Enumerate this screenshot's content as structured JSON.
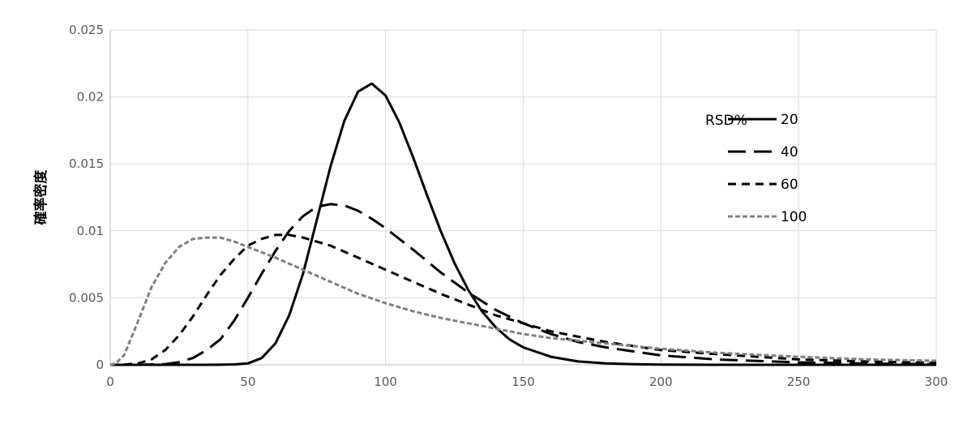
{
  "chart_data": {
    "type": "line",
    "title": "",
    "xlabel": "",
    "ylabel": "確率密度",
    "xlim": [
      0,
      300
    ],
    "ylim": [
      0,
      0.025
    ],
    "x_ticks": [
      "0",
      "50",
      "100",
      "150",
      "200",
      "250",
      "300"
    ],
    "y_ticks": [
      "0",
      "0.005",
      "0.01",
      "0.015",
      "0.02",
      "0.025"
    ],
    "grid": true,
    "legend": {
      "title": "RSD%",
      "position": "top-right"
    },
    "series": [
      {
        "name": "20",
        "color": "#000000",
        "dash": "solid",
        "x": [
          0,
          30,
          40,
          45,
          50,
          55,
          60,
          65,
          70,
          75,
          80,
          85,
          90,
          95,
          100,
          105,
          110,
          115,
          120,
          125,
          130,
          135,
          140,
          145,
          150,
          160,
          170,
          180,
          190,
          200,
          220,
          250,
          300
        ],
        "y": [
          0,
          0,
          5e-06,
          3e-05,
          0.0001,
          0.0005,
          0.0016,
          0.0037,
          0.0068,
          0.0108,
          0.0148,
          0.0182,
          0.0204,
          0.021,
          0.0201,
          0.0181,
          0.0155,
          0.0127,
          0.01,
          0.0076,
          0.0056,
          0.004,
          0.0028,
          0.0019,
          0.0013,
          0.0006,
          0.00025,
          0.0001,
          4e-05,
          2e-05,
          3e-06,
          0,
          0
        ]
      },
      {
        "name": "40",
        "color": "#000000",
        "dash": "long-dash",
        "x": [
          0,
          10,
          20,
          25,
          30,
          35,
          40,
          45,
          50,
          55,
          60,
          65,
          70,
          75,
          80,
          85,
          90,
          95,
          100,
          110,
          120,
          130,
          140,
          150,
          160,
          170,
          180,
          190,
          200,
          220,
          250,
          275,
          300
        ],
        "y": [
          0,
          0,
          5e-05,
          0.0002,
          0.0005,
          0.0011,
          0.0019,
          0.0033,
          0.005,
          0.0068,
          0.0085,
          0.01,
          0.0111,
          0.0118,
          0.012,
          0.0119,
          0.0115,
          0.0109,
          0.0102,
          0.0086,
          0.0069,
          0.0054,
          0.0041,
          0.0031,
          0.0023,
          0.0017,
          0.0013,
          0.001,
          0.0007,
          0.0004,
          0.00018,
          9e-05,
          5e-05
        ]
      },
      {
        "name": "60",
        "color": "#000000",
        "dash": "short-dash",
        "x": [
          0,
          5,
          10,
          15,
          20,
          25,
          30,
          35,
          40,
          45,
          50,
          55,
          60,
          65,
          70,
          80,
          90,
          100,
          110,
          120,
          130,
          140,
          150,
          160,
          170,
          180,
          200,
          220,
          250,
          275,
          300
        ],
        "y": [
          0,
          1e-05,
          0.0001,
          0.0004,
          0.0011,
          0.0022,
          0.0036,
          0.0052,
          0.0067,
          0.0079,
          0.0089,
          0.0094,
          0.0097,
          0.0097,
          0.0095,
          0.0089,
          0.008,
          0.0071,
          0.0062,
          0.0053,
          0.0045,
          0.0037,
          0.0031,
          0.0025,
          0.0021,
          0.0017,
          0.0011,
          0.0008,
          0.0004,
          0.00025,
          0.00015
        ]
      },
      {
        "name": "100",
        "color": "#808080",
        "dash": "dot",
        "x": [
          0,
          2,
          5,
          10,
          15,
          20,
          25,
          30,
          35,
          40,
          45,
          50,
          60,
          70,
          80,
          90,
          100,
          110,
          120,
          130,
          140,
          150,
          160,
          170,
          180,
          200,
          220,
          250,
          275,
          300
        ],
        "y": [
          0,
          0.0001,
          0.0007,
          0.0032,
          0.0058,
          0.0076,
          0.0088,
          0.0094,
          0.0095,
          0.0095,
          0.0092,
          0.0088,
          0.008,
          0.0071,
          0.0062,
          0.0053,
          0.0046,
          0.004,
          0.0035,
          0.0031,
          0.0027,
          0.0023,
          0.002,
          0.0018,
          0.0016,
          0.0012,
          0.0009,
          0.0006,
          0.0004,
          0.0003
        ]
      }
    ]
  }
}
